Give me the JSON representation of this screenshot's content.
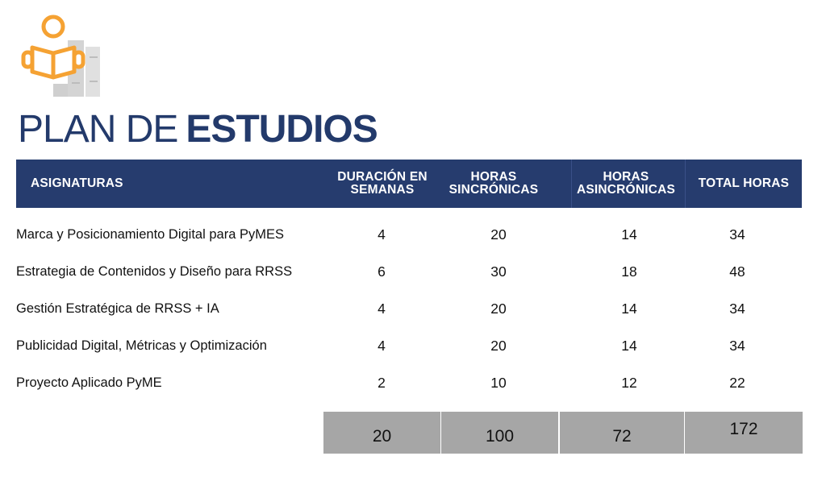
{
  "title": {
    "light": "PLAN DE",
    "bold": "ESTUDIOS"
  },
  "colors": {
    "accent": "#f5a233",
    "navy": "#263c6e",
    "total_bg": "#a6a6a6"
  },
  "logo": {
    "icon": "reader-with-books-icon"
  },
  "table": {
    "headers": [
      "ASIGNATURAS",
      "DURACIÓN EN SEMANAS",
      "HORAS SINCRÓNICAS",
      "HORAS ASINCRÓNICAS",
      "TOTAL HORAS"
    ],
    "rows": [
      {
        "name": "Marca y Posicionamiento Digital para PyMES",
        "weeks": "4",
        "sync": "20",
        "async": "14",
        "total": "34"
      },
      {
        "name": "Estrategia de Contenidos y Diseño para RRSS",
        "weeks": "6",
        "sync": "30",
        "async": "18",
        "total": "48"
      },
      {
        "name": "Gestión Estratégica de RRSS + IA",
        "weeks": "4",
        "sync": "20",
        "async": "14",
        "total": "34"
      },
      {
        "name": "Publicidad Digital, Métricas y Optimización",
        "weeks": "4",
        "sync": "20",
        "async": "14",
        "total": "34"
      },
      {
        "name": "Proyecto Aplicado PyME",
        "weeks": "2",
        "sync": "10",
        "async": "12",
        "total": "22"
      }
    ],
    "totals": {
      "weeks": "20",
      "sync": "100",
      "async": "72",
      "total": "172"
    }
  }
}
